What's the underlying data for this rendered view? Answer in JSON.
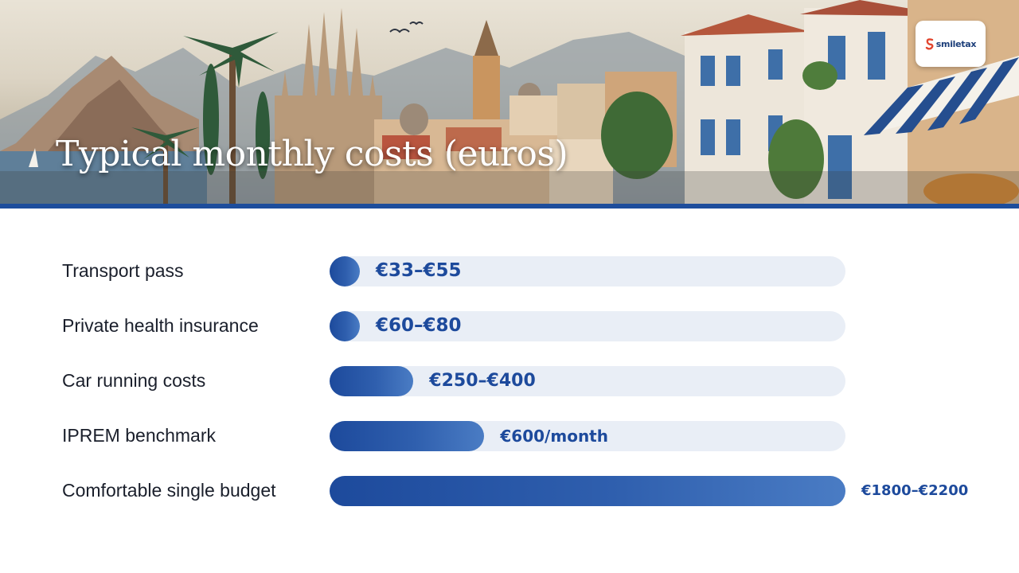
{
  "banner": {
    "title": "Typical monthly costs (euros)",
    "logo_text": "smiletax",
    "sky_color": "#e6e0d3",
    "accent_rule_color": "#1d4d9c"
  },
  "chart_data": {
    "type": "bar",
    "orientation": "horizontal",
    "title": "Typical monthly costs (euros)",
    "categories": [
      "Transport pass",
      "Private health insurance",
      "Car running costs",
      "IPREM benchmark",
      "Comfortable single budget"
    ],
    "value_labels": [
      "€33–€55",
      "€60–€80",
      "€250–€400",
      "€600/month",
      "€1800–€2200"
    ],
    "values": [
      44,
      70,
      325,
      600,
      2000
    ],
    "ranges": [
      [
        33,
        55
      ],
      [
        60,
        80
      ],
      [
        250,
        400
      ],
      [
        600,
        600
      ],
      [
        1800,
        2200
      ]
    ],
    "xlim": [
      0,
      2000
    ],
    "grid": false,
    "legend": "none",
    "bar_color": "#1d4a9c",
    "track_color": "#e9eef6",
    "label_color": "#1d4a9c"
  }
}
